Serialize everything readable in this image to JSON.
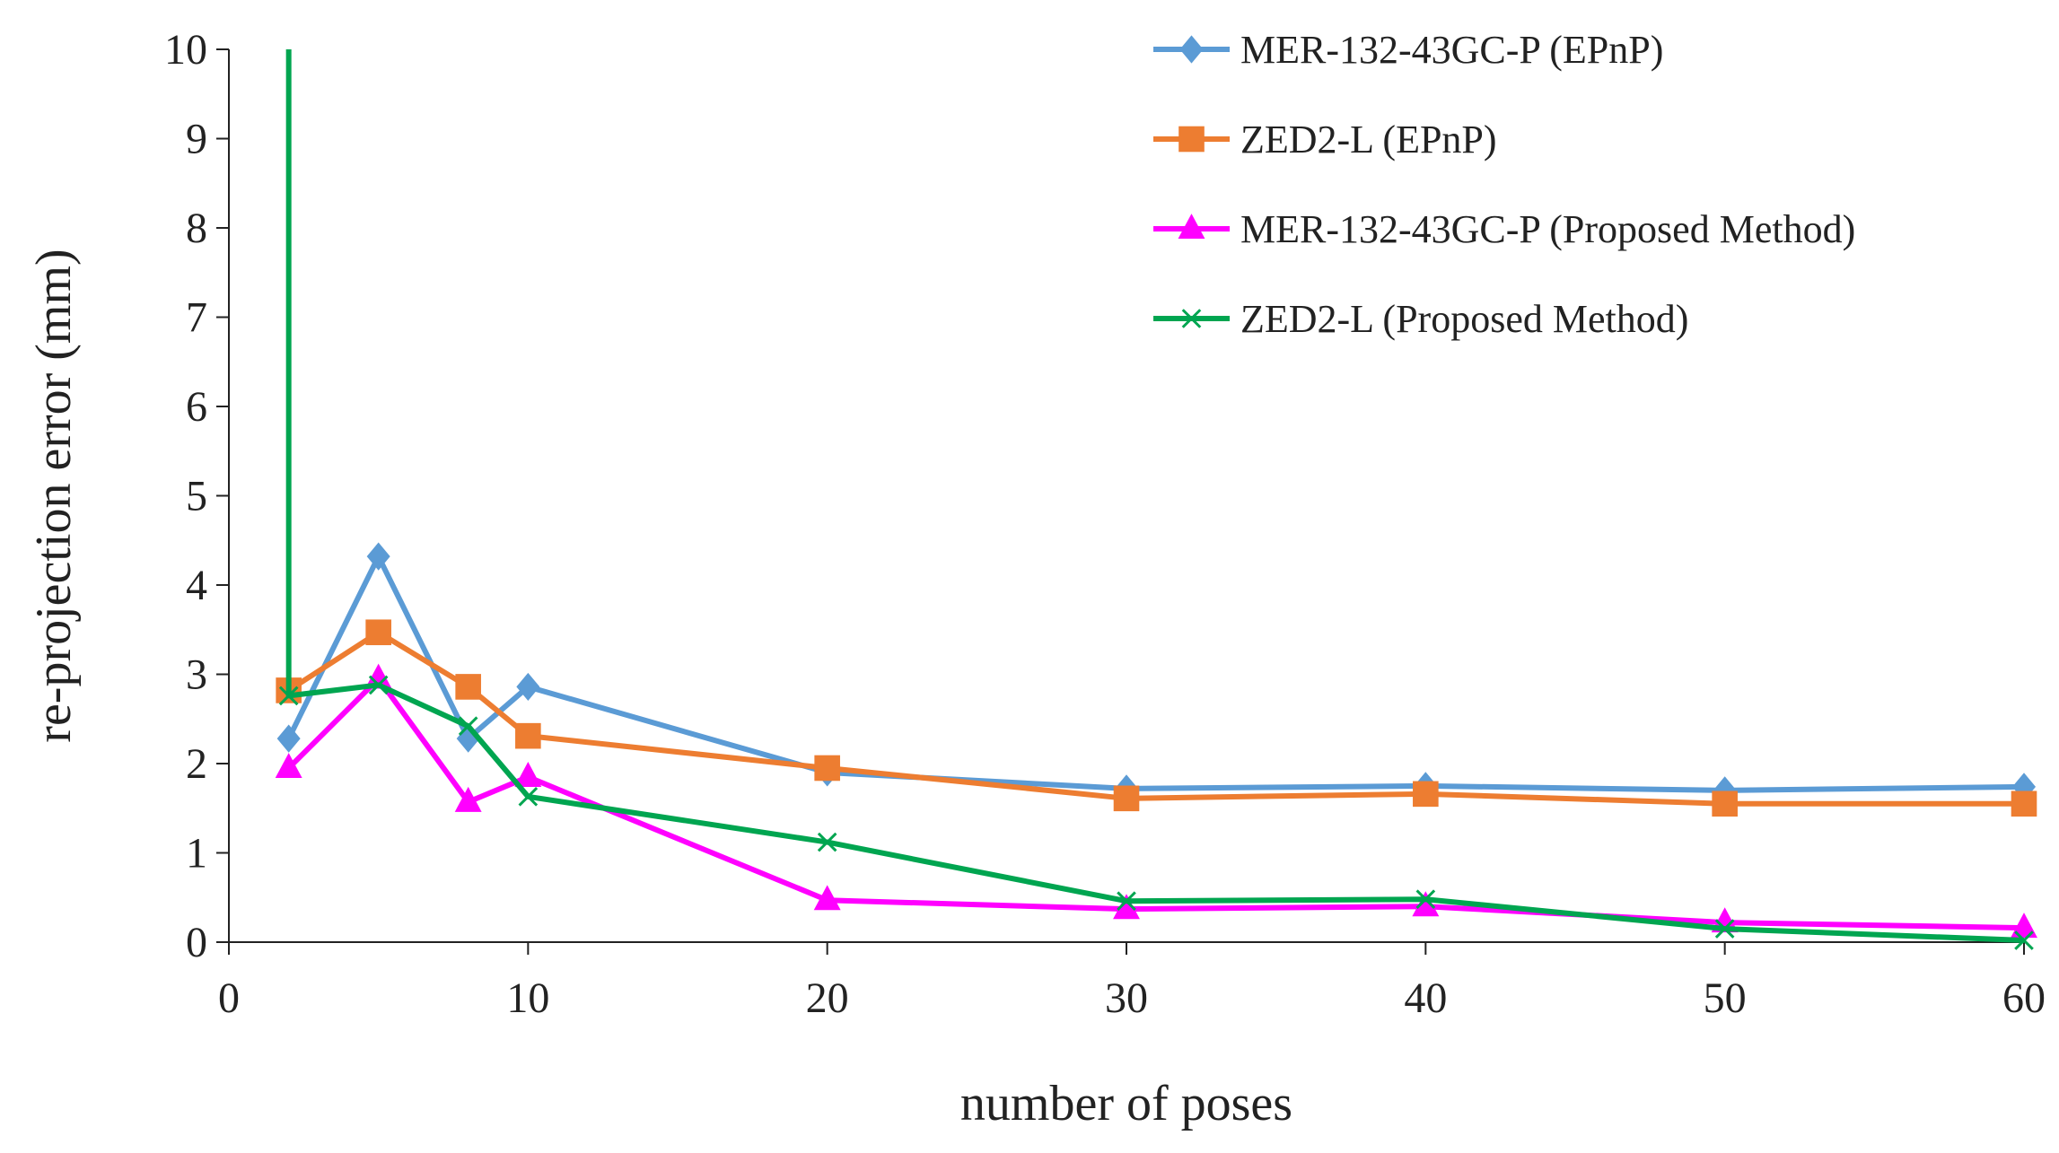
{
  "chart_data": {
    "type": "line",
    "title": "",
    "xlabel": "number of poses",
    "ylabel": "re-projection  error (mm)",
    "xlim": [
      0,
      60
    ],
    "ylim": [
      0,
      10
    ],
    "xticks": [
      "0",
      "10",
      "20",
      "30",
      "40",
      "50",
      "60"
    ],
    "yticks": [
      "0",
      "1",
      "2",
      "3",
      "4",
      "5",
      "6",
      "7",
      "8",
      "9",
      "10"
    ],
    "grid": false,
    "legend_position": "top-right",
    "series": [
      {
        "name": "MER-132-43GC-P (EPnP)",
        "color": "#5b9bd5",
        "marker": "diamond",
        "x": [
          2,
          5,
          8,
          10,
          20,
          30,
          40,
          50,
          60
        ],
        "y": [
          2.28,
          4.32,
          2.28,
          2.86,
          1.9,
          1.72,
          1.75,
          1.7,
          1.74
        ]
      },
      {
        "name": "ZED2-L (EPnP)",
        "color": "#ed7d31",
        "marker": "square",
        "x": [
          2,
          5,
          8,
          10,
          20,
          30,
          40,
          50,
          60
        ],
        "y": [
          2.82,
          3.47,
          2.86,
          2.31,
          1.95,
          1.61,
          1.66,
          1.55,
          1.55
        ]
      },
      {
        "name": "MER-132-43GC-P (Proposed Method)",
        "color": "#ff00ff",
        "marker": "triangle",
        "x": [
          2,
          5,
          8,
          10,
          20,
          30,
          40,
          50,
          60
        ],
        "y": [
          1.95,
          2.95,
          1.57,
          1.85,
          0.47,
          0.37,
          0.4,
          0.22,
          0.16
        ]
      },
      {
        "name": "ZED2-L (Proposed Method)",
        "color": "#00a550",
        "marker": "x",
        "x": [
          2,
          2,
          5,
          8,
          10,
          20,
          30,
          40,
          50,
          60
        ],
        "y": [
          10,
          2.76,
          2.88,
          2.42,
          1.63,
          1.12,
          0.46,
          0.48,
          0.15,
          0.02
        ]
      }
    ]
  }
}
